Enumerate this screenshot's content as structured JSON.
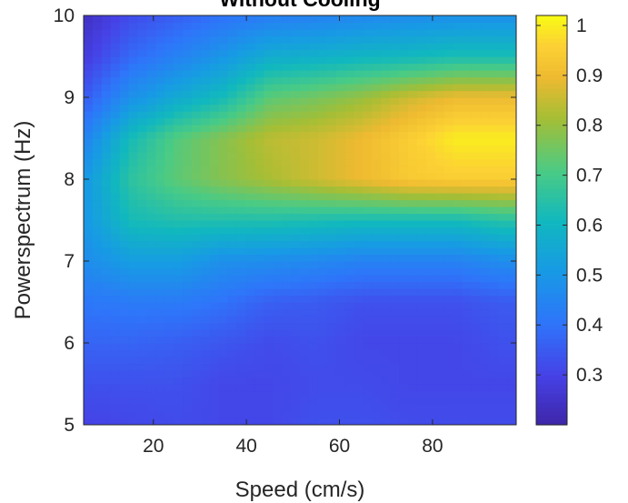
{
  "chart_data": {
    "type": "heatmap",
    "title": "Without Cooling",
    "xlabel": "Speed (cm/s)",
    "ylabel": "Powerspectrum (Hz)",
    "xlim": [
      5,
      98
    ],
    "ylim": [
      5,
      10
    ],
    "xticks": [
      20,
      40,
      60,
      80
    ],
    "yticks": [
      5,
      6,
      7,
      8,
      9,
      10
    ],
    "colormap": "parula",
    "colorbar": {
      "range": [
        0.2,
        1.02
      ],
      "ticks": [
        0.3,
        0.4,
        0.5,
        0.6,
        0.7,
        0.8,
        0.9,
        1
      ]
    },
    "x_samples": [
      5,
      15,
      25,
      35,
      45,
      55,
      65,
      75,
      85,
      95
    ],
    "y_samples": [
      5.0,
      5.5,
      6.0,
      6.5,
      7.0,
      7.5,
      8.0,
      8.5,
      9.0,
      9.5,
      10.0
    ],
    "values": [
      [
        0.3,
        0.31,
        0.32,
        0.31,
        0.31,
        0.33,
        0.33,
        0.32,
        0.32,
        0.32
      ],
      [
        0.33,
        0.33,
        0.33,
        0.31,
        0.31,
        0.32,
        0.32,
        0.31,
        0.31,
        0.31
      ],
      [
        0.37,
        0.37,
        0.36,
        0.34,
        0.32,
        0.33,
        0.31,
        0.31,
        0.31,
        0.33
      ],
      [
        0.41,
        0.42,
        0.42,
        0.4,
        0.36,
        0.35,
        0.33,
        0.33,
        0.33,
        0.35
      ],
      [
        0.47,
        0.52,
        0.52,
        0.48,
        0.47,
        0.46,
        0.44,
        0.44,
        0.44,
        0.47
      ],
      [
        0.5,
        0.62,
        0.64,
        0.64,
        0.64,
        0.63,
        0.62,
        0.62,
        0.62,
        0.65
      ],
      [
        0.5,
        0.66,
        0.73,
        0.78,
        0.82,
        0.86,
        0.9,
        0.94,
        0.95,
        0.95
      ],
      [
        0.44,
        0.62,
        0.72,
        0.78,
        0.84,
        0.86,
        0.9,
        0.95,
        1.0,
        1.0
      ],
      [
        0.35,
        0.48,
        0.56,
        0.62,
        0.73,
        0.76,
        0.8,
        0.86,
        0.9,
        0.9
      ],
      [
        0.28,
        0.38,
        0.44,
        0.5,
        0.57,
        0.58,
        0.6,
        0.61,
        0.63,
        0.63
      ],
      [
        0.24,
        0.32,
        0.36,
        0.4,
        0.43,
        0.44,
        0.46,
        0.47,
        0.48,
        0.48
      ]
    ]
  }
}
